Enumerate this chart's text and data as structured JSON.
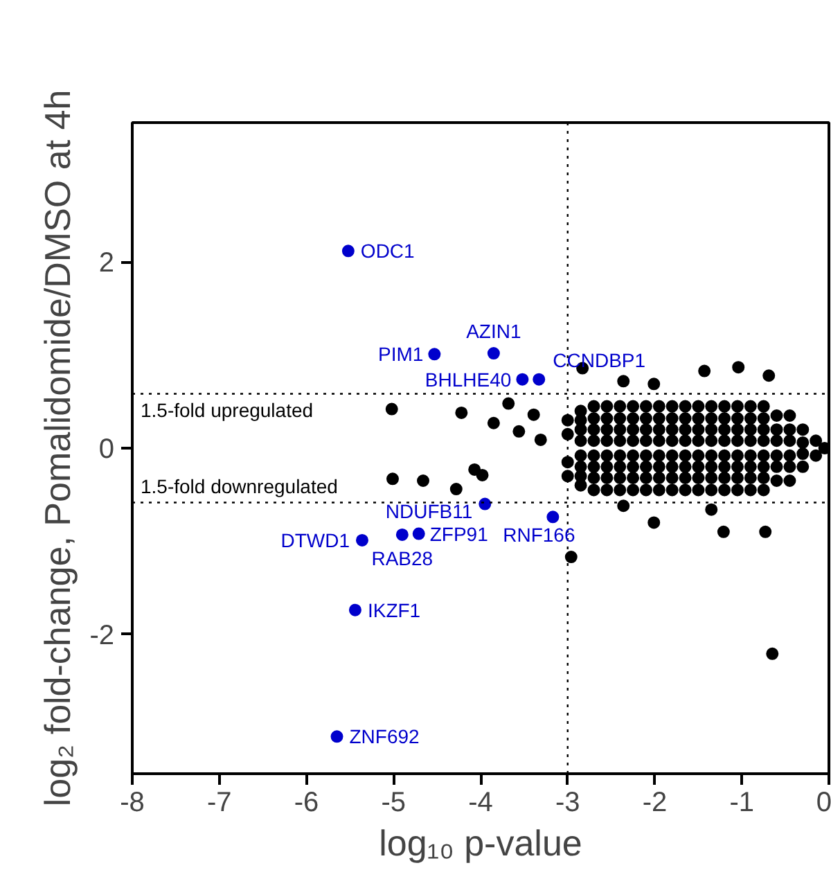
{
  "chart_data": {
    "type": "scatter",
    "xlabel": "log₁₀ p-value",
    "ylabel": "log₂ fold-change, Pomalidomide/DMSO at 4h",
    "xlim": [
      -8,
      0
    ],
    "ylim": [
      -3.5,
      3.5
    ],
    "xticks": [
      -8,
      -7,
      -6,
      -5,
      -4,
      -3,
      -2,
      -1,
      0
    ],
    "yticks": [
      -2,
      0,
      2
    ],
    "grid": false,
    "marker": "circle",
    "ref_lines": [
      {
        "axis": "y",
        "value": 0.585,
        "label": "1.5-fold upregulated",
        "color": "#000000",
        "line_style": "dotted"
      },
      {
        "axis": "y",
        "value": -0.585,
        "label": "1.5-fold downregulated",
        "color": "#000000",
        "line_style": "dotted"
      },
      {
        "axis": "x",
        "value": -3,
        "color": "#000000",
        "line_style": "dotted"
      }
    ],
    "series": [
      {
        "color": "#000000",
        "x": [
          -3.0,
          -3.0,
          -3.0,
          -3.0,
          -2.85,
          -2.85,
          -2.85,
          -2.85,
          -2.85,
          -2.85,
          -2.85,
          -2.85,
          -2.7,
          -2.7,
          -2.7,
          -2.7,
          -2.7,
          -2.7,
          -2.7,
          -2.7,
          -2.55,
          -2.55,
          -2.55,
          -2.55,
          -2.55,
          -2.55,
          -2.55,
          -2.55,
          -2.4,
          -2.4,
          -2.4,
          -2.4,
          -2.4,
          -2.4,
          -2.4,
          -2.4,
          -2.25,
          -2.25,
          -2.25,
          -2.25,
          -2.25,
          -2.25,
          -2.25,
          -2.25,
          -2.1,
          -2.1,
          -2.1,
          -2.1,
          -2.1,
          -2.1,
          -2.1,
          -2.1,
          -1.95,
          -1.95,
          -1.95,
          -1.95,
          -1.95,
          -1.95,
          -1.95,
          -1.95,
          -1.8,
          -1.8,
          -1.8,
          -1.8,
          -1.8,
          -1.8,
          -1.8,
          -1.8,
          -1.65,
          -1.65,
          -1.65,
          -1.65,
          -1.65,
          -1.65,
          -1.65,
          -1.65,
          -1.5,
          -1.5,
          -1.5,
          -1.5,
          -1.5,
          -1.5,
          -1.5,
          -1.5,
          -1.35,
          -1.35,
          -1.35,
          -1.35,
          -1.35,
          -1.35,
          -1.35,
          -1.35,
          -1.2,
          -1.2,
          -1.2,
          -1.2,
          -1.2,
          -1.2,
          -1.2,
          -1.2,
          -1.05,
          -1.05,
          -1.05,
          -1.05,
          -1.05,
          -1.05,
          -1.05,
          -1.05,
          -0.9,
          -0.9,
          -0.9,
          -0.9,
          -0.9,
          -0.9,
          -0.9,
          -0.9,
          -0.75,
          -0.75,
          -0.75,
          -0.75,
          -0.75,
          -0.75,
          -0.75,
          -0.75,
          -0.6,
          -0.6,
          -0.6,
          -0.6,
          -0.6,
          -0.6,
          -0.45,
          -0.45,
          -0.45,
          -0.45,
          -0.45,
          -0.45,
          -0.3,
          -0.3,
          -0.3,
          -0.3,
          -0.15,
          -0.15,
          -0.05,
          -5.02,
          -4.22,
          -3.85,
          -3.68,
          -3.56,
          -3.39,
          -3.31,
          -2.83,
          -2.36,
          -2.01,
          -1.43,
          -1.04,
          -0.69,
          -4.66,
          -4.28,
          -5.01,
          -3.98,
          -4.07,
          -2.01,
          -1.21,
          -0.73,
          -2.96,
          -1.35,
          -2.36,
          -0.65
        ],
        "values": [
          0.3,
          0.15,
          -0.15,
          -0.3,
          0.4,
          0.3,
          0.2,
          0.08,
          -0.08,
          -0.2,
          -0.3,
          -0.4,
          0.45,
          0.32,
          0.2,
          0.08,
          -0.08,
          -0.2,
          -0.32,
          -0.45,
          0.45,
          0.32,
          0.2,
          0.08,
          -0.08,
          -0.2,
          -0.32,
          -0.45,
          0.45,
          0.32,
          0.2,
          0.08,
          -0.08,
          -0.2,
          -0.32,
          -0.45,
          0.45,
          0.32,
          0.2,
          0.08,
          -0.08,
          -0.2,
          -0.32,
          -0.45,
          0.45,
          0.32,
          0.2,
          0.08,
          -0.08,
          -0.2,
          -0.32,
          -0.45,
          0.45,
          0.32,
          0.2,
          0.08,
          -0.08,
          -0.2,
          -0.32,
          -0.45,
          0.45,
          0.32,
          0.2,
          0.08,
          -0.08,
          -0.2,
          -0.32,
          -0.45,
          0.45,
          0.32,
          0.2,
          0.08,
          -0.08,
          -0.2,
          -0.32,
          -0.45,
          0.45,
          0.32,
          0.2,
          0.08,
          -0.08,
          -0.2,
          -0.32,
          -0.45,
          0.45,
          0.32,
          0.2,
          0.08,
          -0.08,
          -0.2,
          -0.32,
          -0.45,
          0.45,
          0.32,
          0.2,
          0.08,
          -0.08,
          -0.2,
          -0.32,
          -0.45,
          0.45,
          0.32,
          0.2,
          0.08,
          -0.08,
          -0.2,
          -0.32,
          -0.45,
          0.45,
          0.32,
          0.2,
          0.08,
          -0.08,
          -0.2,
          -0.32,
          -0.45,
          0.45,
          0.32,
          0.2,
          0.08,
          -0.08,
          -0.2,
          -0.32,
          -0.45,
          0.35,
          0.2,
          0.08,
          -0.08,
          -0.2,
          -0.35,
          0.35,
          0.2,
          0.08,
          -0.08,
          -0.2,
          -0.35,
          0.2,
          0.06,
          -0.06,
          -0.2,
          0.08,
          -0.08,
          0.0,
          0.42,
          0.38,
          0.27,
          0.48,
          0.18,
          0.36,
          0.09,
          0.86,
          0.72,
          0.69,
          0.83,
          0.87,
          0.78,
          -0.35,
          -0.44,
          -0.33,
          -0.29,
          -0.23,
          -0.8,
          -0.9,
          -0.9,
          -1.17,
          -0.66,
          -0.62,
          -2.21
        ]
      },
      {
        "color": "#0000cc",
        "x": [
          -5.52,
          -4.53,
          -3.85,
          -3.52,
          -3.33,
          -3.95,
          -5.36,
          -4.9,
          -4.71,
          -3.17,
          -5.44,
          -5.65
        ],
        "values": [
          2.12,
          1.01,
          1.02,
          0.74,
          0.74,
          -0.6,
          -0.99,
          -0.93,
          -0.92,
          -0.74,
          -1.74,
          -3.1
        ]
      }
    ],
    "annotations": [
      {
        "text": "ODC1",
        "x": -5.52,
        "y": 2.12
      },
      {
        "text": "PIM1",
        "x": -4.53,
        "y": 1.01
      },
      {
        "text": "AZIN1",
        "x": -3.85,
        "y": 1.02
      },
      {
        "text": "BHLHE40",
        "x": -3.52,
        "y": 0.74
      },
      {
        "text": "CCNDBP1",
        "x": -3.33,
        "y": 0.74
      },
      {
        "text": "NDUFB11",
        "x": -3.95,
        "y": -0.6
      },
      {
        "text": "DTWD1",
        "x": -5.36,
        "y": -0.99
      },
      {
        "text": "RAB28",
        "x": -4.9,
        "y": -0.93
      },
      {
        "text": "ZFP91",
        "x": -4.71,
        "y": -0.92
      },
      {
        "text": "RNF166",
        "x": -3.17,
        "y": -0.74
      },
      {
        "text": "IKZF1",
        "x": -5.44,
        "y": -1.74
      },
      {
        "text": "ZNF692",
        "x": -5.65,
        "y": -3.1
      }
    ]
  }
}
